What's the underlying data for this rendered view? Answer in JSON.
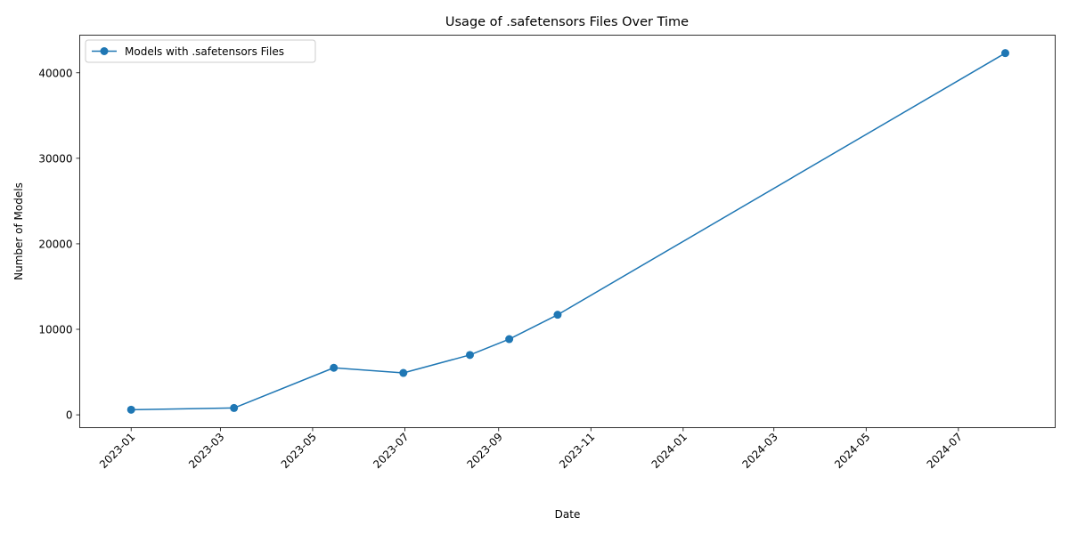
{
  "chart_data": {
    "type": "line",
    "title": "Usage of .safetensors Files Over Time",
    "xlabel": "Date",
    "ylabel": "Number of Models",
    "x_axis_type": "date",
    "xlim": [
      "2022-11-28",
      "2024-09-03"
    ],
    "ylim": [
      -1500,
      44400
    ],
    "x_ticks": [
      "2023-01",
      "2023-03",
      "2023-05",
      "2023-07",
      "2023-09",
      "2023-11",
      "2024-01",
      "2024-03",
      "2024-05",
      "2024-07"
    ],
    "y_ticks": [
      0,
      10000,
      20000,
      30000,
      40000
    ],
    "grid": false,
    "legend_position": "top-left",
    "color": "#1f77b4",
    "marker": "circle",
    "series": [
      {
        "name": "Models with .safetensors Files",
        "x": [
          "2023-01-01",
          "2023-03-10",
          "2023-05-15",
          "2023-06-30",
          "2023-08-13",
          "2023-09-08",
          "2023-10-10",
          "2024-08-01"
        ],
        "y": [
          600,
          800,
          5500,
          4900,
          7000,
          8850,
          11700,
          42300
        ]
      }
    ]
  }
}
